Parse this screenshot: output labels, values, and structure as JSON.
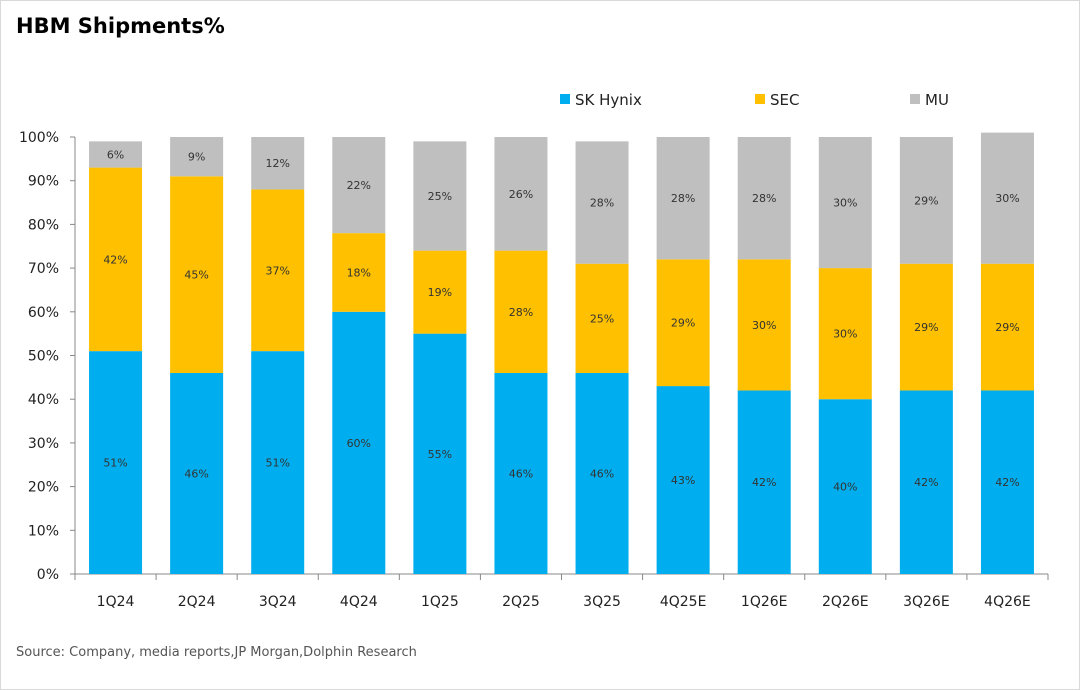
{
  "chart_data": {
    "type": "bar",
    "stacked": true,
    "title": "HBM Shipments%",
    "categories": [
      "1Q24",
      "2Q24",
      "3Q24",
      "4Q24",
      "1Q25",
      "2Q25",
      "3Q25",
      "4Q25E",
      "1Q26E",
      "2Q26E",
      "3Q26E",
      "4Q26E"
    ],
    "series": [
      {
        "name": "SK Hynix",
        "color": "#00AEEF",
        "values": [
          51,
          46,
          51,
          60,
          55,
          46,
          46,
          43,
          42,
          40,
          42,
          42
        ]
      },
      {
        "name": "SEC",
        "color": "#FFC000",
        "values": [
          42,
          45,
          37,
          18,
          19,
          28,
          25,
          29,
          30,
          30,
          29,
          29
        ]
      },
      {
        "name": "MU",
        "color": "#BFBFBF",
        "values": [
          6,
          9,
          12,
          22,
          25,
          26,
          28,
          28,
          28,
          30,
          29,
          30
        ]
      }
    ],
    "yticks": [
      "0%",
      "10%",
      "20%",
      "30%",
      "40%",
      "50%",
      "60%",
      "70%",
      "80%",
      "90%",
      "100%"
    ],
    "ylim": [
      0,
      100
    ],
    "grid": false,
    "legend": "top-right",
    "source": "Source: Company, media reports,JP Morgan,Dolphin Research"
  }
}
